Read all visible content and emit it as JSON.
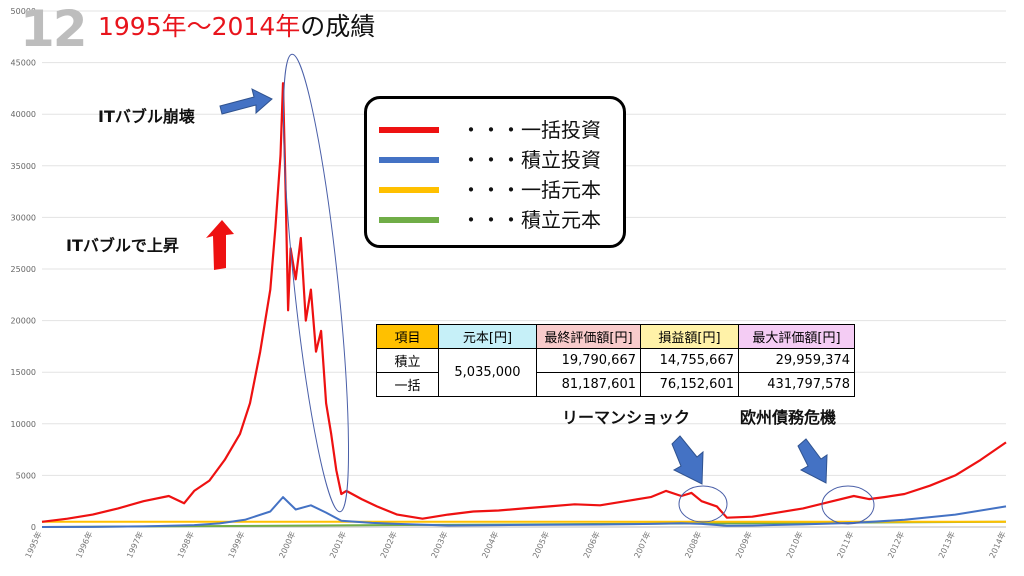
{
  "slide_number": "12",
  "title": {
    "red": "1995年～2014年",
    "black": "の成績"
  },
  "colors": {
    "lump_sum_invest": "#ee1111",
    "dca_invest": "#4472c4",
    "lump_sum_principal": "#ffc000",
    "dca_principal": "#70ad47",
    "arrow_blue": "#4472c4",
    "arrow_red": "#ee1111"
  },
  "annotations": {
    "it_bubble_collapse": "ITバブル崩壊",
    "it_bubble_rise": "ITバブルで上昇",
    "lehman_shock": "リーマンショック",
    "euro_crisis": "欧州債務危機"
  },
  "legend": [
    {
      "dots": "・・・",
      "label": "一括投資",
      "color": "#ee1111"
    },
    {
      "dots": "・・・",
      "label": "積立投資",
      "color": "#4472c4"
    },
    {
      "dots": "・・・",
      "label": "一括元本",
      "color": "#ffc000"
    },
    {
      "dots": "・・・",
      "label": "積立元本",
      "color": "#70ad47"
    }
  ],
  "results_table": {
    "headers": [
      "項目",
      "元本[円]",
      "最終評価額[円]",
      "損益額[円]",
      "最大評価額[円]"
    ],
    "header_colors": [
      "#ffc000",
      "#c6f0f8",
      "#f8cbcb",
      "#fff2a8",
      "#f4ccf4"
    ],
    "principal": "5,035,000",
    "rows": [
      {
        "item": "積立",
        "final": "19,790,667",
        "profit": "14,755,667",
        "max": "29,959,374"
      },
      {
        "item": "一括",
        "final": "81,187,601",
        "profit": "76,152,601",
        "max": "431,797,578"
      }
    ]
  },
  "chart_data": {
    "type": "line",
    "ylim": [
      0,
      50000
    ],
    "yticks": [
      0,
      5000,
      10000,
      15000,
      20000,
      25000,
      30000,
      35000,
      40000,
      45000,
      50000
    ],
    "xlim": [
      1995,
      2014
    ],
    "x_tick_labels": [
      "1995年",
      "1996年",
      "1997年",
      "1998年",
      "1999年",
      "2000年",
      "2001年",
      "2002年",
      "2003年",
      "2004年",
      "2005年",
      "2006年",
      "2007年",
      "2008年",
      "2009年",
      "2010年",
      "2011年",
      "2012年",
      "2013年",
      "2014年"
    ],
    "grid": true,
    "series": [
      {
        "name": "一括投資",
        "color": "#ee1111",
        "x": [
          1995.0,
          1995.5,
          1996.0,
          1996.5,
          1997.0,
          1997.5,
          1997.8,
          1998.0,
          1998.3,
          1998.6,
          1998.9,
          1999.1,
          1999.3,
          1999.5,
          1999.6,
          1999.7,
          1999.75,
          1999.8,
          1999.85,
          1999.9,
          2000.0,
          2000.1,
          2000.2,
          2000.3,
          2000.4,
          2000.5,
          2000.6,
          2000.7,
          2000.8,
          2000.9,
          2001.0,
          2001.3,
          2001.6,
          2002.0,
          2002.5,
          2003.0,
          2003.5,
          2004.0,
          2004.5,
          2005.0,
          2005.5,
          2006.0,
          2006.5,
          2007.0,
          2007.3,
          2007.6,
          2007.8,
          2008.0,
          2008.3,
          2008.5,
          2009.0,
          2009.5,
          2010.0,
          2010.5,
          2011.0,
          2011.3,
          2011.6,
          2012.0,
          2012.5,
          2013.0,
          2013.5,
          2014.0
        ],
        "y": [
          500,
          800,
          1200,
          1800,
          2500,
          3000,
          2300,
          3500,
          4500,
          6500,
          9000,
          12000,
          17000,
          23000,
          29000,
          36000,
          43000,
          33000,
          21000,
          27000,
          24000,
          28000,
          20000,
          23000,
          17000,
          19000,
          12000,
          9000,
          5500,
          3200,
          3500,
          2700,
          2000,
          1200,
          800,
          1200,
          1500,
          1600,
          1800,
          2000,
          2200,
          2100,
          2500,
          2900,
          3500,
          3000,
          3300,
          2500,
          2000,
          900,
          1000,
          1400,
          1800,
          2400,
          3000,
          2700,
          2900,
          3200,
          4000,
          5000,
          6500,
          8200
        ]
      },
      {
        "name": "積立投資",
        "color": "#4472c4",
        "x": [
          1995.0,
          1996.0,
          1997.0,
          1998.0,
          1998.5,
          1999.0,
          1999.5,
          1999.75,
          2000.0,
          2000.3,
          2000.6,
          2000.9,
          2001.5,
          2002.0,
          2003.0,
          2004.0,
          2005.0,
          2006.0,
          2007.0,
          2007.6,
          2008.0,
          2008.5,
          2009.0,
          2010.0,
          2011.0,
          2012.0,
          2013.0,
          2014.0
        ],
        "y": [
          0,
          10,
          60,
          180,
          350,
          700,
          1500,
          2900,
          1700,
          2100,
          1400,
          600,
          400,
          300,
          150,
          180,
          220,
          240,
          300,
          360,
          300,
          120,
          150,
          250,
          400,
          700,
          1200,
          2000
        ]
      },
      {
        "name": "一括元本",
        "color": "#ffc000",
        "x": [
          1995.0,
          2014.0
        ],
        "y": [
          503,
          503
        ]
      },
      {
        "name": "積立元本",
        "color": "#70ad47",
        "x": [
          1995.0,
          2014.0
        ],
        "y": [
          0,
          503
        ]
      }
    ]
  }
}
